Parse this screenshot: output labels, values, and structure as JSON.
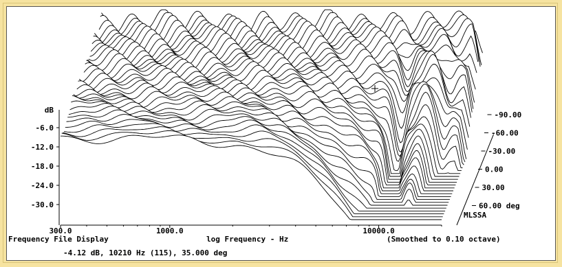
{
  "chart_data": {
    "type": "waterfall",
    "footer_left": "Frequency File Display",
    "xlabel": "log Frequency - Hz",
    "smoothing": "(Smoothed to 0.10 octave)",
    "readout": "-4.12 dB, 10210 Hz (115), 35.000 deg",
    "brand": "MLSSA",
    "ylabel": "dB",
    "y_ticks": [
      "-6.0",
      "-12.0",
      "-18.0",
      "-24.0",
      "-30.0"
    ],
    "y_tick_values": [
      -6,
      -12,
      -18,
      -24,
      -30
    ],
    "x_ticks": [
      "300.0",
      "1000.0",
      "10000.0"
    ],
    "x_tick_values": [
      300,
      1000,
      10000
    ],
    "z_ticks": [
      "-90.00",
      "-60.00",
      "-30.00",
      "0.00",
      "30.00",
      "60.00 deg"
    ],
    "z_tick_values": [
      -90,
      -60,
      -30,
      0,
      30,
      60
    ],
    "xlim": [
      300,
      20000
    ],
    "ylim": [
      -33,
      3
    ],
    "angle_range": [
      -90,
      90
    ],
    "curve_count": 36
  }
}
